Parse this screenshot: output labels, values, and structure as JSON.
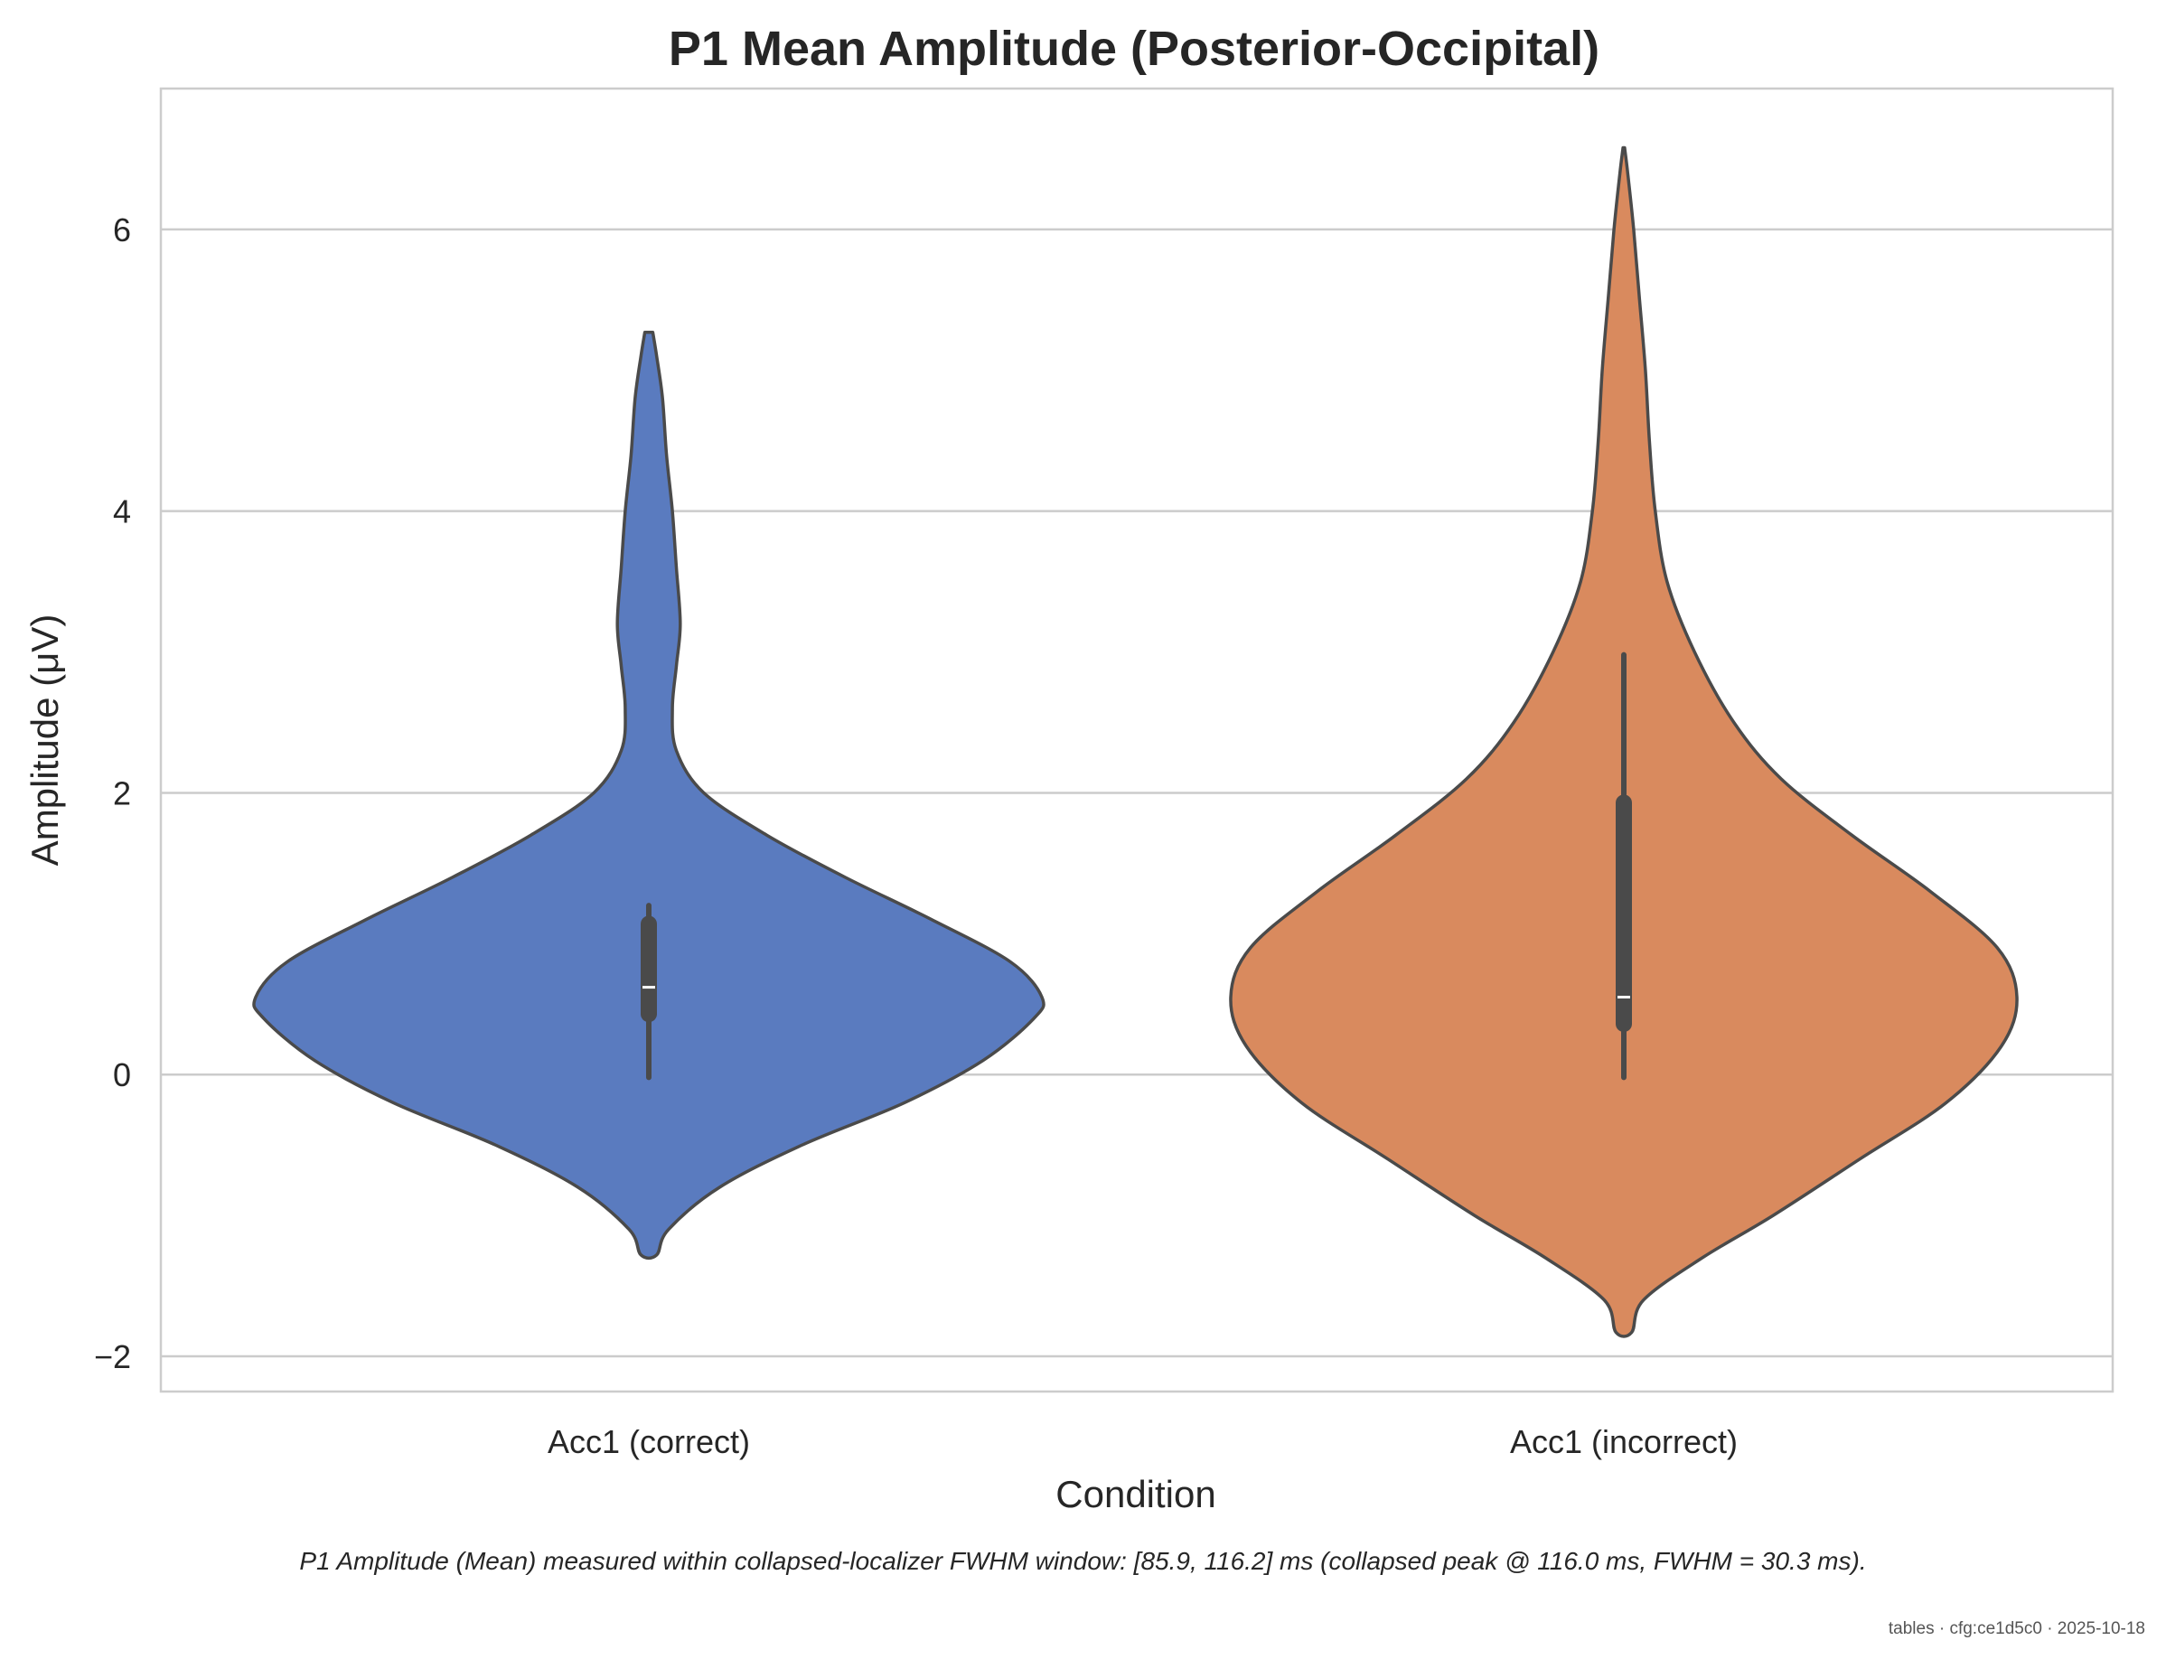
{
  "chart_data": {
    "type": "violin",
    "title": "P1 Mean Amplitude (Posterior-Occipital)",
    "xlabel": "Condition",
    "ylabel": "Amplitude (μV)",
    "ylim": [
      -2.25,
      7.0
    ],
    "yticks": [
      -2,
      0,
      2,
      4,
      6
    ],
    "grid": true,
    "colors": {
      "grid": "#cccccc",
      "frame": "#cccccc",
      "outline": "#4a4a4a",
      "box": "#4a4a4a",
      "median": "#ffffff"
    },
    "categories": [
      "Acc1 (correct)",
      "Acc1 (incorrect)"
    ],
    "series": [
      {
        "category": "Acc1 (correct)",
        "color": "#5a7bbf",
        "min": -1.28,
        "max": 5.27,
        "q1": 0.43,
        "median": 0.62,
        "q3": 1.07,
        "whisker_low": -0.02,
        "whisker_high": 1.2,
        "density": [
          [
            -1.28,
            0.02
          ],
          [
            -1.1,
            0.05
          ],
          [
            -0.8,
            0.18
          ],
          [
            -0.5,
            0.39
          ],
          [
            -0.2,
            0.65
          ],
          [
            0.1,
            0.85
          ],
          [
            0.4,
            0.98
          ],
          [
            0.55,
            1.0
          ],
          [
            0.8,
            0.92
          ],
          [
            1.1,
            0.72
          ],
          [
            1.4,
            0.5
          ],
          [
            1.7,
            0.3
          ],
          [
            2.0,
            0.14
          ],
          [
            2.3,
            0.07
          ],
          [
            2.6,
            0.06
          ],
          [
            2.9,
            0.07
          ],
          [
            3.2,
            0.08
          ],
          [
            3.6,
            0.07
          ],
          [
            4.0,
            0.06
          ],
          [
            4.4,
            0.045
          ],
          [
            4.8,
            0.035
          ],
          [
            5.1,
            0.02
          ],
          [
            5.27,
            0.01
          ]
        ]
      },
      {
        "category": "Acc1 (incorrect)",
        "color": "#d98a5e",
        "min": -1.83,
        "max": 6.58,
        "q1": 0.36,
        "median": 0.55,
        "q3": 1.93,
        "whisker_low": -0.02,
        "whisker_high": 2.98,
        "density": [
          [
            -1.83,
            0.02
          ],
          [
            -1.6,
            0.05
          ],
          [
            -1.3,
            0.2
          ],
          [
            -1.0,
            0.38
          ],
          [
            -0.6,
            0.6
          ],
          [
            -0.2,
            0.82
          ],
          [
            0.2,
            0.96
          ],
          [
            0.55,
            1.0
          ],
          [
            0.9,
            0.95
          ],
          [
            1.3,
            0.78
          ],
          [
            1.7,
            0.58
          ],
          [
            2.1,
            0.4
          ],
          [
            2.5,
            0.28
          ],
          [
            3.0,
            0.18
          ],
          [
            3.5,
            0.11
          ],
          [
            4.0,
            0.08
          ],
          [
            4.5,
            0.065
          ],
          [
            5.0,
            0.055
          ],
          [
            5.5,
            0.04
          ],
          [
            6.0,
            0.025
          ],
          [
            6.4,
            0.01
          ],
          [
            6.58,
            0.002
          ]
        ]
      }
    ]
  },
  "caption": "P1 Amplitude (Mean) measured within collapsed-localizer FWHM window: [85.9, 116.2] ms (collapsed peak @ 116.0 ms, FWHM = 30.3 ms).",
  "footer": "tables · cfg:ce1d5c0 · 2025-10-18"
}
